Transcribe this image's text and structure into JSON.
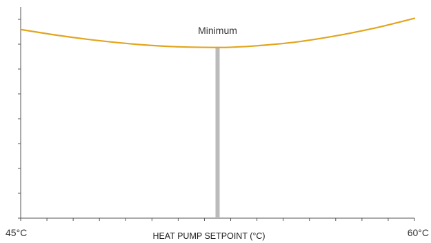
{
  "chart_data": {
    "type": "line",
    "title": "",
    "xlabel": "HEAT PUMP SETPOINT (°C)",
    "ylabel": "",
    "x_tick_labels": [
      "45°C",
      "60°C"
    ],
    "xlim": [
      45,
      60
    ],
    "ylim": [
      0,
      100
    ],
    "grid": false,
    "legend": "none",
    "series": [
      {
        "x": [
          45,
          46.5,
          48,
          49.5,
          51,
          52.5,
          53,
          54,
          55.5,
          57,
          58.5,
          60
        ],
        "values": [
          89.3,
          86.4,
          84.0,
          82.2,
          81.1,
          80.8,
          80.9,
          81.6,
          83.4,
          86.3,
          90.0,
          94.6
        ],
        "color": "#E2A51D"
      }
    ],
    "annotations": [
      {
        "text": "Minimum",
        "x": 52.5,
        "color": "#BBBBBB"
      }
    ]
  }
}
